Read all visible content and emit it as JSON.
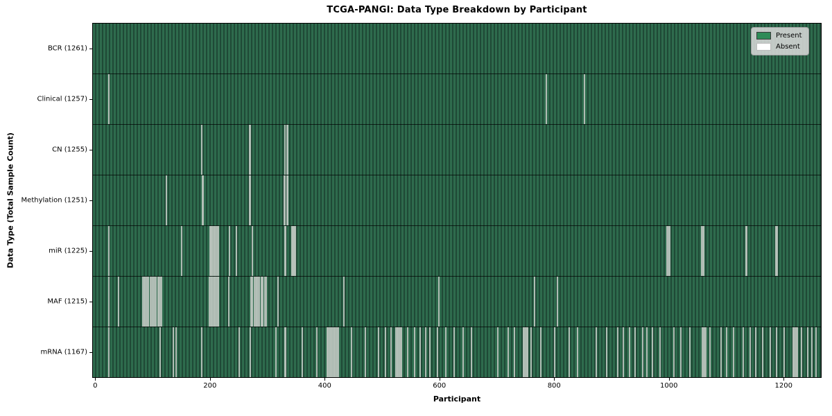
{
  "chart_data": {
    "type": "heatmap",
    "title": "TCGA-PANGI: Data Type Breakdown by Participant",
    "xlabel": "Participant",
    "ylabel": "Data Type (Total Sample Count)",
    "x_ticks": [
      0,
      200,
      400,
      600,
      800,
      1000,
      1200
    ],
    "xlim": [
      -4,
      1265
    ],
    "total_participants": 1261,
    "grid": false,
    "legend_position": "upper right",
    "legend": {
      "entries": [
        {
          "label": "Present",
          "color": "#2e8b57",
          "border": "#3a3a3a"
        },
        {
          "label": "Absent",
          "color": "#ffffff",
          "border": "#bdbdbd"
        }
      ]
    },
    "colors": {
      "present_stripe_light": "#2e6b4d",
      "present_stripe_dark": "#1f4936",
      "absent_line": "#b7c2bb",
      "row_divider": "#000000",
      "legend_bg": "#d8d8d8"
    },
    "rows": [
      {
        "data_type": "BCR",
        "label": "BCR (1261)",
        "present_count": 1261,
        "absent_count": 0,
        "absent_positions": []
      },
      {
        "data_type": "Clinical",
        "label": "Clinical (1257)",
        "present_count": 1257,
        "absent_count": 4,
        "absent_positions": [
          22,
          23,
          785,
          852
        ]
      },
      {
        "data_type": "CN",
        "label": "CN (1255)",
        "present_count": 1255,
        "absent_count": 6,
        "absent_positions": [
          185,
          268,
          269,
          329,
          333,
          334
        ]
      },
      {
        "data_type": "Methylation",
        "label": "Methylation (1251)",
        "present_count": 1251,
        "absent_count": 10,
        "absent_positions": [
          123,
          186,
          187,
          268,
          269,
          328,
          329,
          333,
          334,
          335
        ]
      },
      {
        "data_type": "miR",
        "label": "miR (1225)",
        "present_count": 1225,
        "absent_count": 36,
        "absent_positions": [
          23,
          150,
          199,
          200,
          201,
          202,
          204,
          206,
          208,
          210,
          212,
          214,
          233,
          245,
          273,
          330,
          331,
          342,
          343,
          344,
          345,
          346,
          347,
          348,
          996,
          998,
          1000,
          1056,
          1058,
          1060,
          1133,
          1135,
          1185,
          1186,
          1187,
          1188
        ]
      },
      {
        "data_type": "MAF",
        "label": "MAF (1215)",
        "present_count": 1215,
        "absent_count": 46,
        "absent_positions": [
          23,
          39,
          82,
          84,
          86,
          88,
          90,
          92,
          95,
          98,
          100,
          102,
          105,
          108,
          110,
          112,
          115,
          198,
          200,
          202,
          204,
          206,
          208,
          210,
          212,
          213,
          214,
          232,
          270,
          272,
          273,
          276,
          279,
          280,
          282,
          285,
          288,
          290,
          291,
          294,
          297,
          318,
          432,
          598,
          765,
          805
        ]
      },
      {
        "data_type": "mRNA",
        "label": "mRNA (1167)",
        "present_count": 1167,
        "absent_count": 94,
        "absent_positions": [
          22,
          112,
          135,
          140,
          184,
          250,
          269,
          314,
          330,
          331,
          360,
          385,
          403,
          405,
          407,
          409,
          411,
          413,
          415,
          417,
          419,
          421,
          423,
          446,
          470,
          493,
          505,
          515,
          523,
          525,
          527,
          529,
          531,
          533,
          543,
          555,
          565,
          575,
          582,
          595,
          610,
          625,
          640,
          655,
          700,
          719,
          729,
          745,
          747,
          749,
          751,
          752,
          759,
          775,
          800,
          825,
          840,
          872,
          890,
          910,
          919,
          930,
          940,
          953,
          960,
          970,
          983,
          1008,
          1020,
          1035,
          1057,
          1059,
          1061,
          1063,
          1071,
          1090,
          1100,
          1111,
          1128,
          1140,
          1150,
          1162,
          1175,
          1187,
          1200,
          1215,
          1217,
          1219,
          1221,
          1223,
          1230,
          1241,
          1248,
          1255
        ]
      }
    ]
  }
}
